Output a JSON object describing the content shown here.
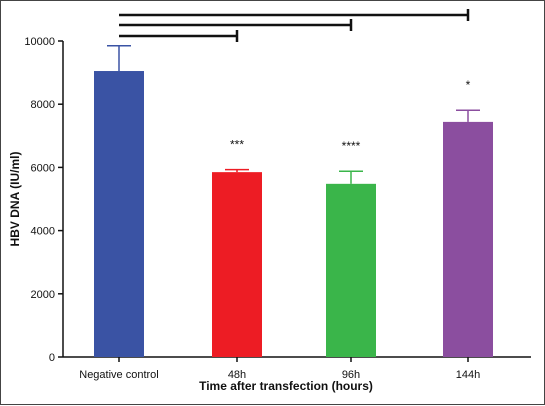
{
  "chart_data": {
    "type": "bar",
    "xlabel": "Time after transfection (hours)",
    "ylabel": "HBV DNA (IU/ml)",
    "ylim": [
      0,
      10000
    ],
    "yticks": [
      0,
      2000,
      4000,
      6000,
      8000,
      10000
    ],
    "categories": [
      "Negative control",
      "48h",
      "96h",
      "144h"
    ],
    "values": [
      9050,
      5850,
      5480,
      7440
    ],
    "errors": [
      800,
      80,
      400,
      370
    ],
    "colors": [
      "#3a53a4",
      "#ed1c24",
      "#3ab54a",
      "#8b4e9f"
    ],
    "significance": [
      "",
      "***",
      "****",
      "*"
    ],
    "comparison_brackets": [
      {
        "from": "Negative control",
        "to": "48h"
      },
      {
        "from": "Negative control",
        "to": "96h"
      },
      {
        "from": "Negative control",
        "to": "144h"
      }
    ],
    "grid": false,
    "legend": "none"
  }
}
